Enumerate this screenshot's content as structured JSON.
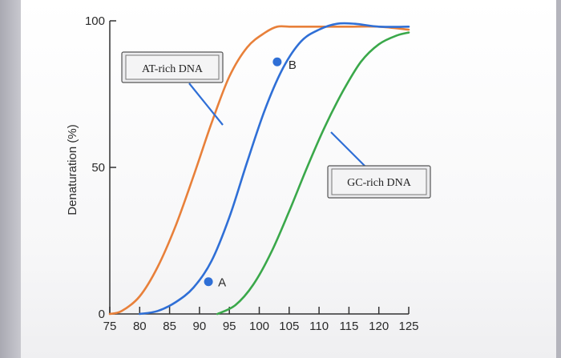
{
  "chart_data": {
    "type": "line",
    "title": "",
    "xlabel": "",
    "ylabel": "Denaturation (%)",
    "xlim": [
      75,
      125
    ],
    "ylim": [
      0,
      100
    ],
    "x_ticks": [
      75,
      80,
      85,
      90,
      95,
      100,
      105,
      110,
      115,
      120,
      125
    ],
    "y_ticks": [
      0,
      50,
      100
    ],
    "grid": false,
    "series": [
      {
        "name": "AT-rich DNA",
        "color": "#e8803a",
        "x": [
          75,
          77,
          80,
          83,
          86,
          89,
          92,
          95,
          98,
          101,
          103,
          105,
          106,
          110,
          115,
          120,
          125
        ],
        "y": [
          0,
          1,
          6,
          16,
          30,
          47,
          65,
          81,
          91,
          96,
          98,
          98,
          98,
          98,
          98,
          98,
          97
        ]
      },
      {
        "name": "",
        "color": "#2f6fd6",
        "x": [
          80,
          83,
          86,
          89,
          92,
          95,
          98,
          101,
          104,
          107,
          110,
          113,
          116,
          120,
          125
        ],
        "y": [
          0,
          1,
          4,
          9,
          18,
          33,
          52,
          70,
          84,
          93,
          97,
          99,
          99,
          98,
          98
        ]
      },
      {
        "name": "GC-rich DNA",
        "color": "#3aa84a",
        "x": [
          93,
          96,
          99,
          102,
          105,
          108,
          111,
          114,
          117,
          120,
          123,
          125
        ],
        "y": [
          0,
          3,
          10,
          21,
          35,
          50,
          64,
          76,
          86,
          92,
          95,
          96
        ]
      }
    ],
    "annotations": [
      {
        "text": "A",
        "x": 91.5,
        "y": 11
      },
      {
        "text": "B",
        "x": 103,
        "y": 86
      }
    ],
    "legend": "inline callout boxes"
  }
}
